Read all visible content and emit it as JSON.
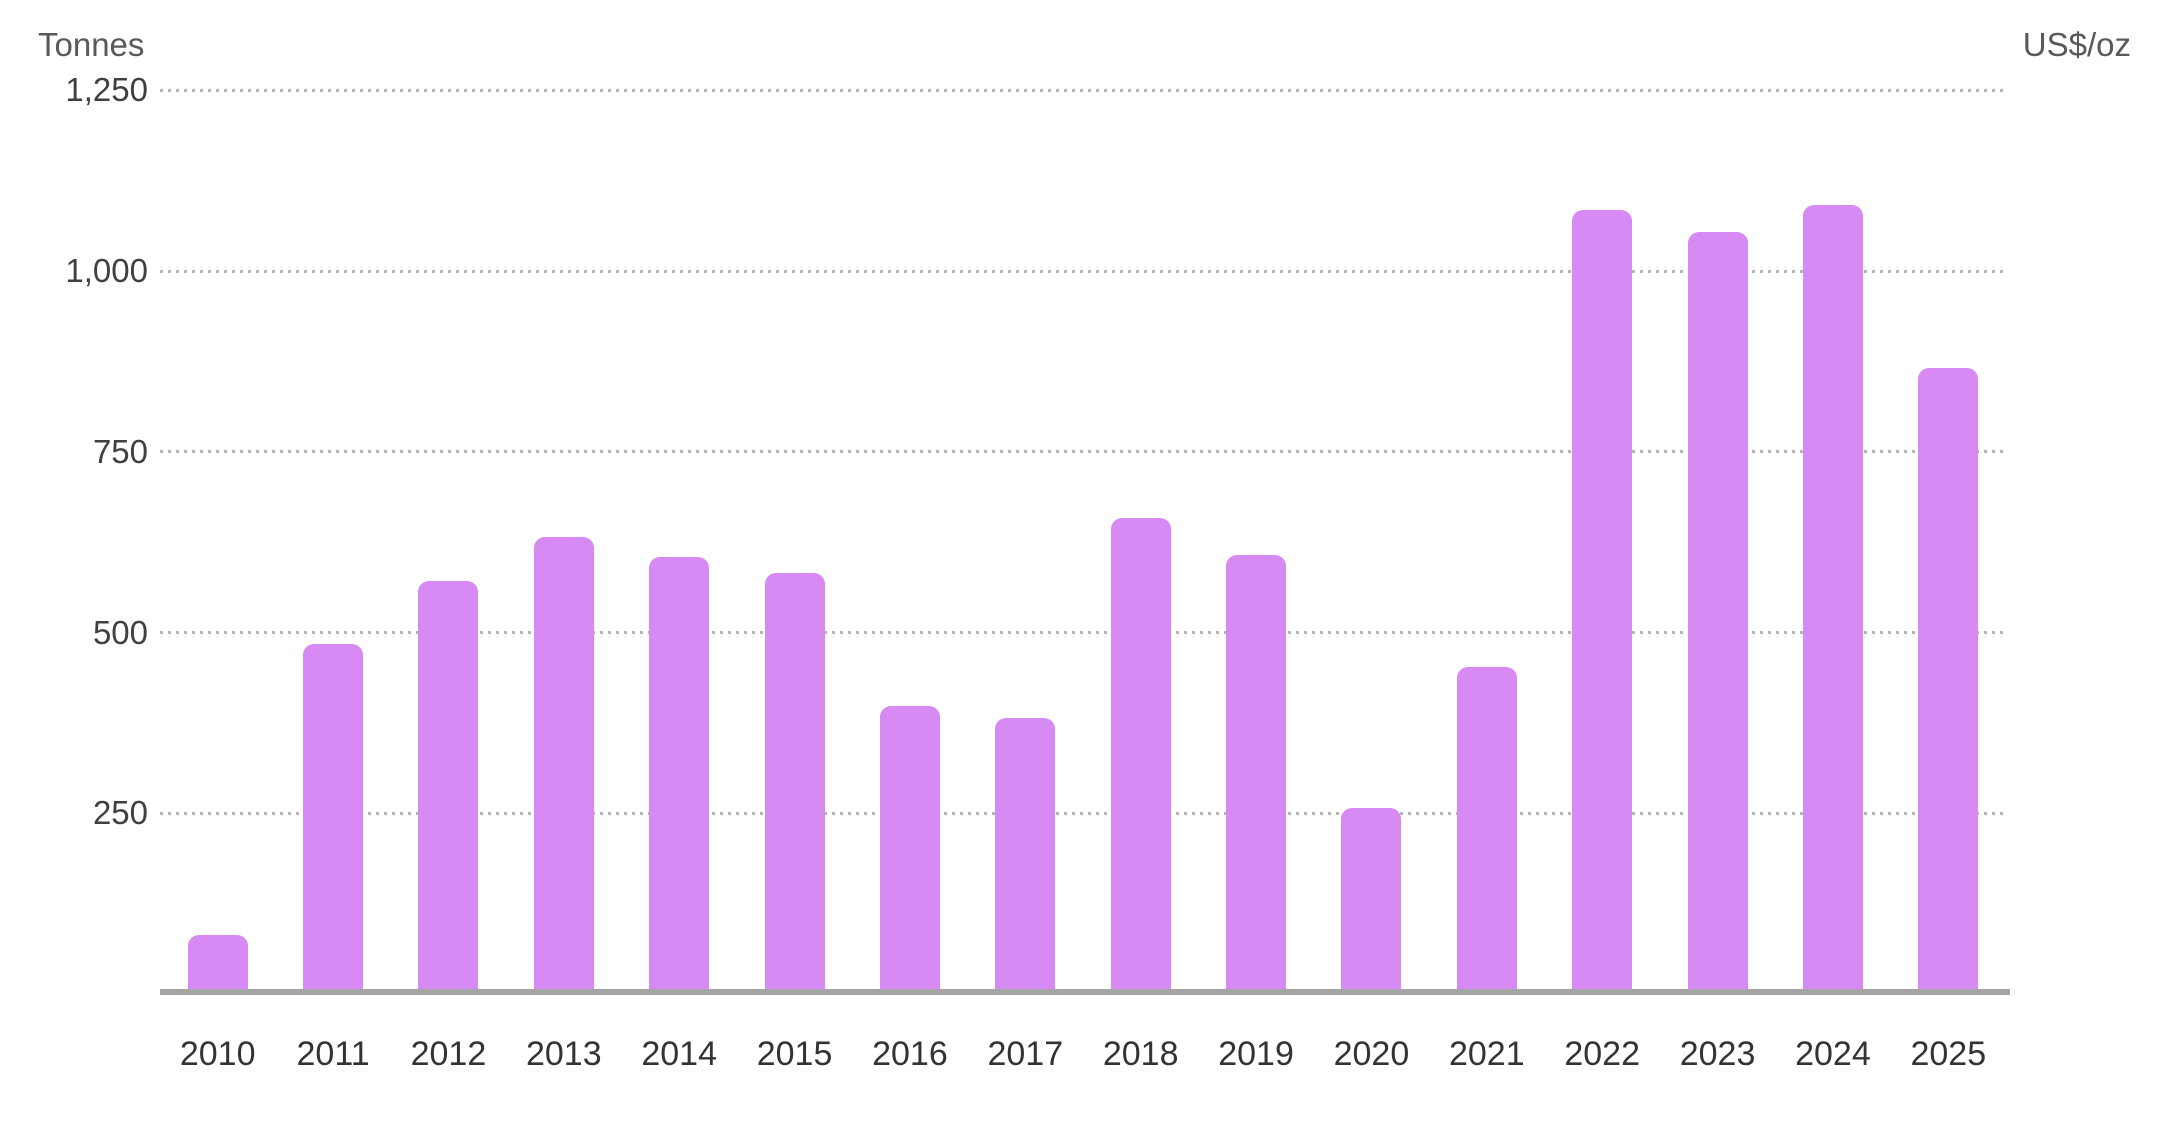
{
  "colors": {
    "bar": "#d78af3",
    "gridline": "#b4b4b4",
    "axis_line": "#a5a5a5",
    "y_tick_label": "#404040",
    "x_label": "#333333",
    "axis_title": "#595959",
    "background": "#ffffff"
  },
  "chart_data": {
    "type": "bar",
    "title": "",
    "categories": [
      "2010",
      "2011",
      "2012",
      "2013",
      "2014",
      "2015",
      "2016",
      "2017",
      "2018",
      "2019",
      "2020",
      "2021",
      "2022",
      "2023",
      "2024",
      "2025"
    ],
    "values": [
      79,
      481,
      569,
      629,
      601,
      580,
      395,
      379,
      656,
      605,
      255,
      450,
      1082,
      1051,
      1089,
      863
    ],
    "xlabel": "",
    "ylabel_left": "Tonnes",
    "ylabel_right": "US$/oz",
    "ylim": [
      0,
      1250
    ],
    "yticks": [
      {
        "value": 250,
        "label": "250"
      },
      {
        "value": 500,
        "label": "500"
      },
      {
        "value": 750,
        "label": "750"
      },
      {
        "value": 1000,
        "label": "1,000"
      },
      {
        "value": 1250,
        "label": "1,250"
      }
    ],
    "grid": "horizontal-dotted",
    "legend": "none",
    "bar_color": "#d78af3"
  }
}
